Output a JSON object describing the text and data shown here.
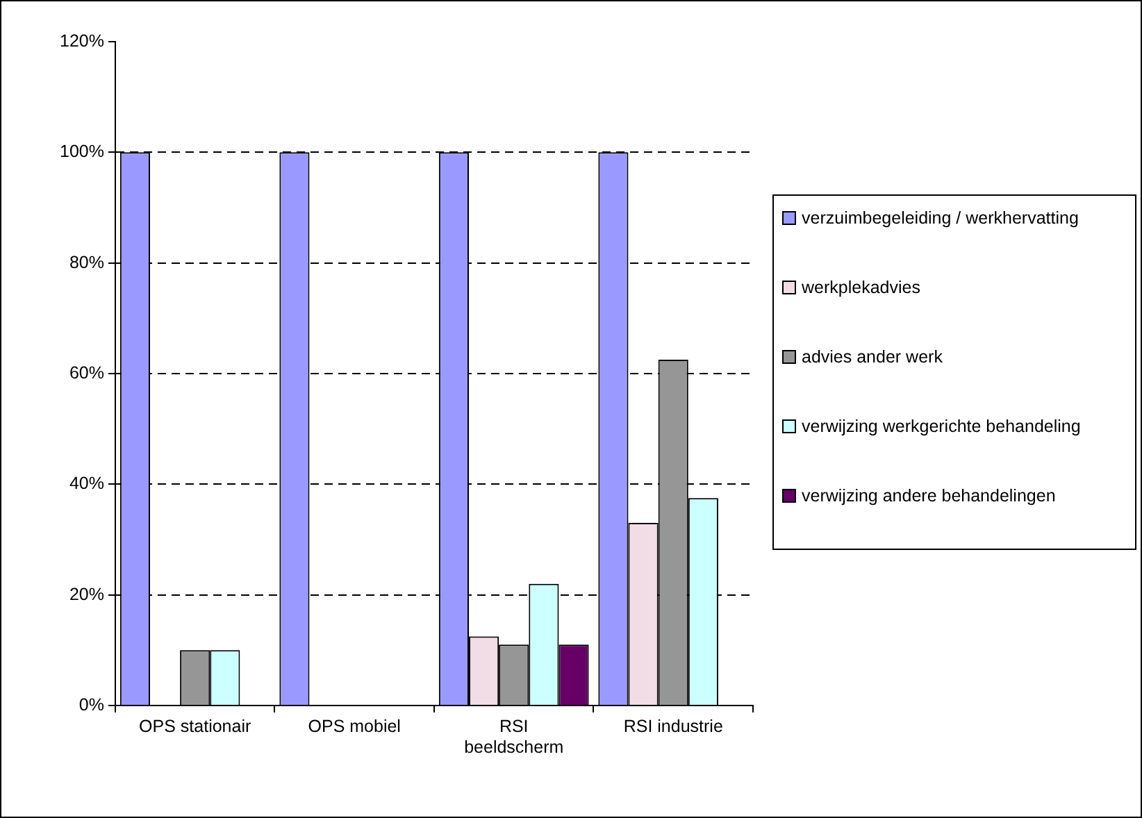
{
  "chart_data": {
    "type": "bar",
    "categories": [
      "OPS stationair",
      "OPS mobiel",
      "RSI beeldscherm",
      "RSI industrie"
    ],
    "series": [
      {
        "name": "verzuimbegeleiding / werkhervatting",
        "color": "#9999ff",
        "values": [
          100,
          100,
          100,
          100
        ]
      },
      {
        "name": "werkplekadvies",
        "color": "#f2dce6",
        "values": [
          null,
          null,
          12.5,
          33
        ]
      },
      {
        "name": "advies ander werk",
        "color": "#969696",
        "values": [
          10,
          null,
          11,
          62.5
        ]
      },
      {
        "name": "verwijzing werkgerichte behandeling",
        "color": "#ccffff",
        "values": [
          10,
          null,
          22,
          37.5
        ]
      },
      {
        "name": "verwijzing andere behandelingen",
        "color": "#660066",
        "values": [
          null,
          null,
          11,
          null
        ]
      }
    ],
    "ylim": [
      0,
      120
    ],
    "yticks": [
      {
        "value": 0,
        "label": "0%"
      },
      {
        "value": 20,
        "label": "20%"
      },
      {
        "value": 40,
        "label": "40%"
      },
      {
        "value": 60,
        "label": "60%"
      },
      {
        "value": 80,
        "label": "80%"
      },
      {
        "value": 100,
        "label": "100%"
      },
      {
        "value": 120,
        "label": "120%"
      }
    ],
    "grid": "y",
    "legend": "right"
  }
}
